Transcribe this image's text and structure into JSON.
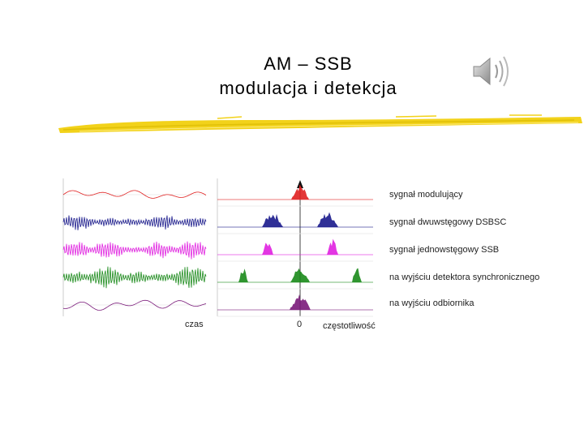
{
  "title": {
    "line1": "AM – SSB",
    "line2": "modulacja i detekcja"
  },
  "audio": {
    "icon": "speaker-sound-icon"
  },
  "figure": {
    "rows": [
      {
        "label": "sygnał modulujący",
        "color": "#e02020"
      },
      {
        "label": "sygnał dwuwstęgowy DSBSC",
        "color": "#1a1a8c"
      },
      {
        "label": "sygnał jednowstęgowy SSB",
        "color": "#e020e0"
      },
      {
        "label": "na wyjściu detektora synchronicznego",
        "color": "#1a8a1a"
      },
      {
        "label": "na wyjściu odbiornika",
        "color": "#7a1a7a"
      }
    ],
    "time_axis_label": "czas",
    "freq_axis_label": "częstotliwość",
    "freq_zero_label": "0"
  },
  "colors": {
    "brush": "#f2d21a"
  }
}
